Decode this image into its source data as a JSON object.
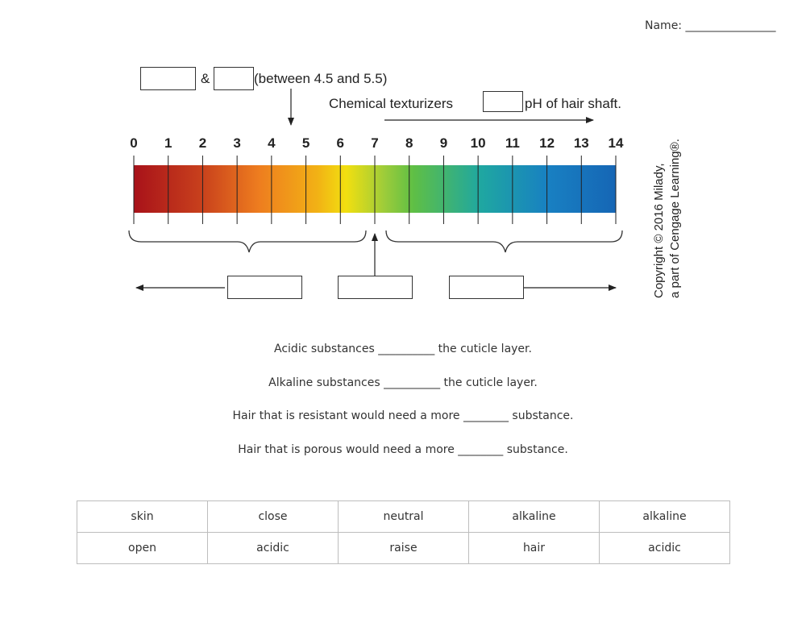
{
  "header": {
    "name_label": "Name: ________________"
  },
  "diagram": {
    "top_label_amp": "&",
    "top_label_range": "(between 4.5 and 5.5)",
    "chem_label_left": "Chemical texturizers",
    "chem_label_right": "pH of hair shaft.",
    "copyright_line1": "Copyright © 2016 Milady,",
    "copyright_line2": "a part of Cengage Learning®.",
    "ph_scale": [
      "0",
      "1",
      "2",
      "3",
      "4",
      "5",
      "6",
      "7",
      "8",
      "9",
      "10",
      "11",
      "12",
      "13",
      "14"
    ],
    "colors": {
      "acid_red": "#a8121a",
      "orange": "#ee7d1f",
      "yellow": "#f2df10",
      "green": "#5fbf45",
      "blue": "#1666b5"
    }
  },
  "answer_boxes": {
    "box1": {
      "value": ""
    },
    "box2": {
      "value": ""
    },
    "box3": {
      "value": ""
    },
    "box4": {
      "value": ""
    },
    "box5": {
      "value": ""
    },
    "box6": {
      "value": ""
    }
  },
  "sentences": [
    "Acidic substances __________ the cuticle layer.",
    "Alkaline substances __________ the cuticle layer.",
    "Hair that is resistant would need a more ________ substance.",
    "Hair that is porous would need a more ________ substance."
  ],
  "word_bank": [
    [
      "skin",
      "close",
      "neutral",
      "alkaline",
      "alkaline"
    ],
    [
      "open",
      "acidic",
      "raise",
      "hair",
      "acidic"
    ]
  ]
}
